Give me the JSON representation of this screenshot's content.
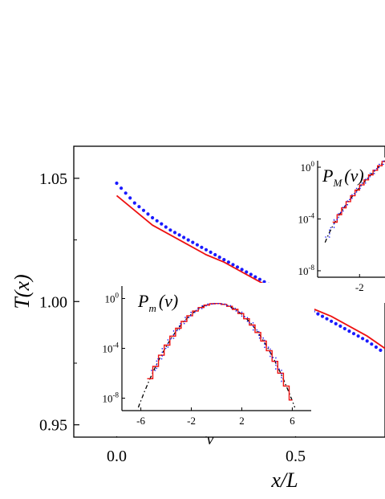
{
  "chart_data": [
    {
      "type": "line",
      "xlabel": "x/L",
      "ylabel": "T(x)",
      "xlim": [
        -0.12,
        0.75
      ],
      "ylim": [
        0.945,
        1.063
      ],
      "x_ticks": [
        0.0,
        0.5
      ],
      "x_tick_labels": [
        "0.0",
        "0.5"
      ],
      "y_ticks": [
        0.95,
        1.0,
        1.05
      ],
      "y_tick_labels": [
        "0.95",
        "1.00",
        "1.05"
      ],
      "series": [
        {
          "style": "dotted",
          "color": "#1a1aff",
          "x": [
            0.0,
            0.05,
            0.1,
            0.15,
            0.2,
            0.25,
            0.3,
            0.35,
            0.4,
            0.45,
            0.5,
            0.55,
            0.6,
            0.65,
            0.7,
            0.75
          ],
          "y": [
            1.048,
            1.04,
            1.034,
            1.029,
            1.025,
            1.021,
            1.017,
            1.013,
            1.009,
            1.005,
            1.0,
            0.996,
            0.992,
            0.988,
            0.984,
            0.979
          ]
        },
        {
          "style": "solid",
          "color": "#ee1111",
          "x": [
            0.0,
            0.05,
            0.1,
            0.15,
            0.2,
            0.25,
            0.3,
            0.35,
            0.4,
            0.45,
            0.5,
            0.55,
            0.6,
            0.65,
            0.7,
            0.75
          ],
          "y": [
            1.043,
            1.037,
            1.031,
            1.027,
            1.023,
            1.019,
            1.016,
            1.012,
            1.008,
            1.004,
            1.0,
            0.997,
            0.994,
            0.99,
            0.986,
            0.981
          ]
        }
      ]
    },
    {
      "type": "line",
      "title_main": "P",
      "title_sub": "m",
      "title_arg": "(v)",
      "xlabel": "v",
      "xlim": [
        -7.5,
        7.5
      ],
      "ylog": true,
      "ylim_log10": [
        -9,
        1
      ],
      "x_ticks": [
        -6,
        -2,
        2,
        6
      ],
      "x_tick_labels": [
        "-6",
        "-2",
        "2",
        "6"
      ],
      "y_ticks_log10": [
        0,
        -4,
        -8
      ],
      "y_tick_base": "10",
      "y_tick_exponents": [
        "0",
        "-4",
        "-8"
      ],
      "series": [
        {
          "style": "dashdot",
          "color": "#000000",
          "kind": "gaussian",
          "x": [
            -6.2,
            6.2
          ]
        },
        {
          "style": "solid",
          "color": "#ee1111",
          "kind": "histogram",
          "x": [
            -5.5,
            6.0
          ]
        },
        {
          "style": "dotted",
          "color": "#1a1aff",
          "kind": "histogram",
          "x": [
            -5.2,
            5.3
          ]
        }
      ]
    },
    {
      "type": "line",
      "title_main": "P",
      "title_sub": "M",
      "title_arg": "(v)",
      "xlim": [
        -4.8,
        -0.3
      ],
      "ylog": true,
      "ylim_log10": [
        -8.5,
        0.5
      ],
      "x_ticks": [
        -2
      ],
      "x_tick_labels": [
        "-2"
      ],
      "y_ticks_log10": [
        0,
        -4,
        -8
      ],
      "y_tick_base": "10",
      "y_tick_exponents": [
        "0",
        "-4",
        "-8"
      ],
      "series": [
        {
          "style": "dashdot",
          "color": "#000000",
          "kind": "left-tail",
          "x": [
            -4.3,
            -0.3
          ]
        },
        {
          "style": "solid",
          "color": "#ee1111",
          "kind": "histogram",
          "x": [
            -3.8,
            -0.3
          ]
        },
        {
          "style": "dotted",
          "color": "#1a1aff",
          "kind": "histogram",
          "x": [
            -4.3,
            -0.3
          ]
        }
      ]
    }
  ]
}
